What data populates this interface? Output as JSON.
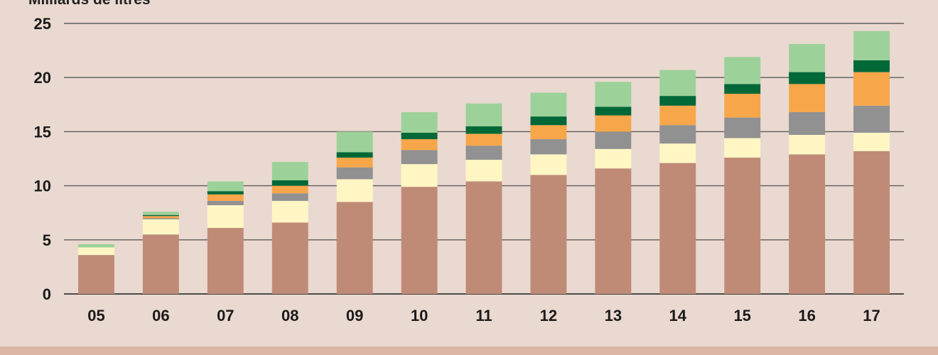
{
  "chart_data": {
    "type": "bar",
    "stacked": true,
    "ylabel": "Milliards de litres",
    "ylim": [
      0,
      25
    ],
    "yticks": [
      0,
      5,
      10,
      15,
      20,
      25
    ],
    "grid": true,
    "categories": [
      "05",
      "06",
      "07",
      "08",
      "09",
      "10",
      "11",
      "12",
      "13",
      "14",
      "15",
      "16",
      "17"
    ],
    "series": [
      {
        "color": "#bf8b77",
        "values": [
          3.6,
          5.5,
          6.1,
          6.6,
          8.5,
          9.9,
          10.4,
          11.0,
          11.6,
          12.1,
          12.6,
          12.9,
          13.2
        ]
      },
      {
        "color": "#fff6c4",
        "values": [
          0.7,
          1.4,
          2.1,
          2.0,
          2.1,
          2.1,
          2.0,
          1.9,
          1.8,
          1.8,
          1.8,
          1.8,
          1.7
        ]
      },
      {
        "color": "#919191",
        "values": [
          0.0,
          0.1,
          0.4,
          0.7,
          1.1,
          1.3,
          1.3,
          1.4,
          1.6,
          1.7,
          1.9,
          2.1,
          2.5
        ]
      },
      {
        "color": "#f7a64a",
        "values": [
          0.0,
          0.2,
          0.6,
          0.7,
          0.9,
          1.0,
          1.1,
          1.3,
          1.5,
          1.8,
          2.2,
          2.6,
          3.1
        ]
      },
      {
        "color": "#006837",
        "values": [
          0.0,
          0.1,
          0.3,
          0.5,
          0.5,
          0.6,
          0.7,
          0.8,
          0.8,
          0.9,
          0.9,
          1.1,
          1.1
        ]
      },
      {
        "color": "#9dd19a",
        "values": [
          0.3,
          0.3,
          0.9,
          1.7,
          1.9,
          1.9,
          2.1,
          2.2,
          2.3,
          2.4,
          2.5,
          2.6,
          2.7
        ]
      }
    ]
  }
}
